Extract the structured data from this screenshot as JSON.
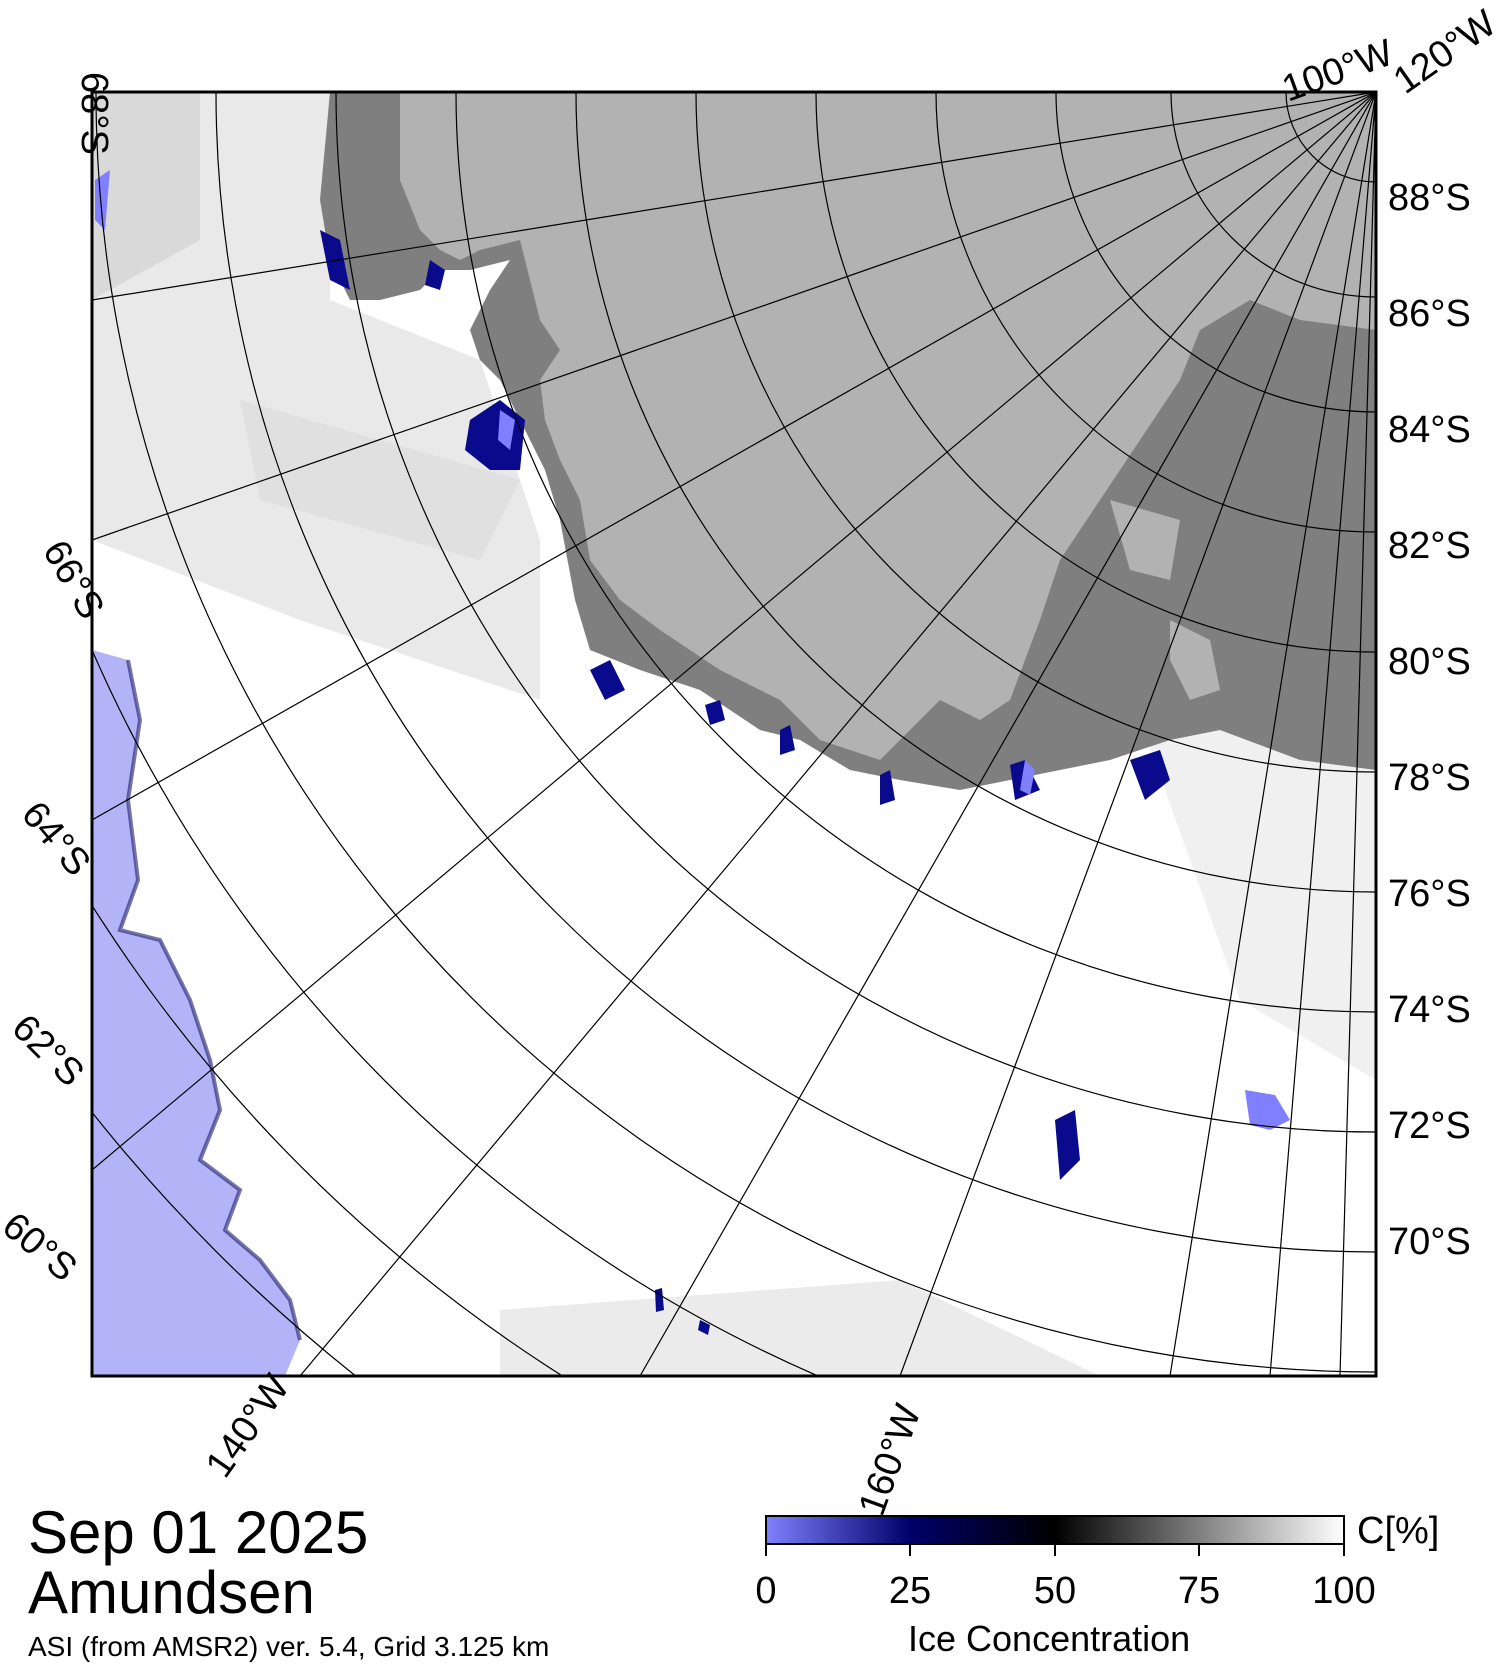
{
  "map": {
    "date": "Sep 01 2025",
    "region": "Amundsen",
    "credit": "ASI (from AMSR2) ver. 5.4,  Grid 3.125 km",
    "lat_labels_right": [
      "88°S",
      "86°S",
      "84°S",
      "82°S",
      "80°S",
      "78°S",
      "76°S",
      "74°S",
      "72°S",
      "70°S"
    ],
    "lat_labels_left": [
      "68°S",
      "66°S",
      "64°S",
      "62°S",
      "60°S"
    ],
    "lon_labels_bottom": [
      "140°W",
      "160°W"
    ],
    "lon_labels_top": [
      "100°W",
      "120°W"
    ],
    "colors": {
      "open_water": "#b3b3f7",
      "high_ice": "#ffffff",
      "land": "#b2b2b2",
      "ice_shelf": "#7f7f7f",
      "low_concentration": "#0a0a8c"
    }
  },
  "colorbar": {
    "unit": "C[%]",
    "title": "Ice Concentration",
    "ticks": [
      "0",
      "25",
      "50",
      "75",
      "100"
    ],
    "gradient": [
      "#8080ff",
      "#00006a",
      "#000000",
      "#808080",
      "#ffffff"
    ]
  }
}
